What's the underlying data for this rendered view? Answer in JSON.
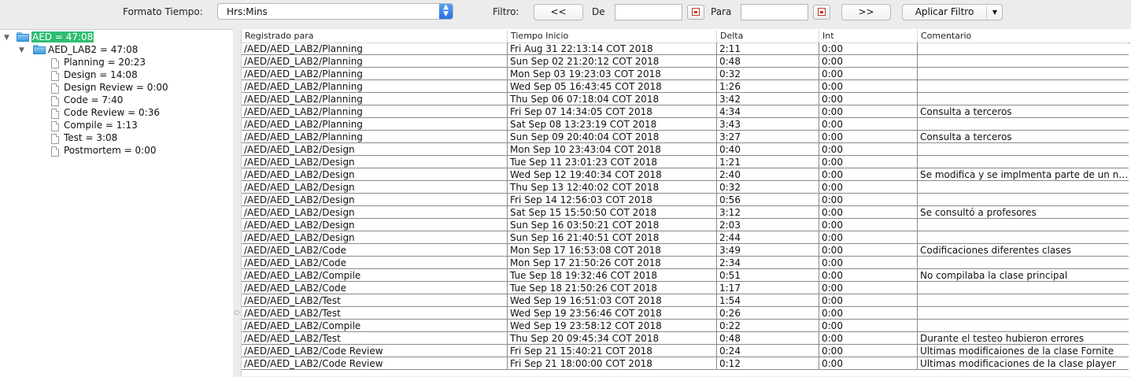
{
  "toolbar": {
    "time_format_label": "Formato Tiempo:",
    "time_format_value": "Hrs:Mins",
    "filter_label": "Filtro:",
    "prev_label": "<<",
    "from_label": "De",
    "from_value": "",
    "to_label": "Para",
    "to_value": "",
    "next_label": ">>",
    "apply_label": "Aplicar Filtro"
  },
  "tree": {
    "root": "AED = 47:08",
    "project": "AED_LAB2 = 47:08",
    "phases": [
      "Planning = 20:23",
      "Design = 14:08",
      "Design Review = 0:00",
      "Code = 7:40",
      "Code Review = 0:36",
      "Compile = 1:13",
      "Test = 3:08",
      "Postmortem = 0:00"
    ]
  },
  "table": {
    "headers": [
      "Registrado para",
      "Tiempo Inicio",
      "Delta",
      "Int",
      "Comentario"
    ],
    "rows": [
      [
        "/AED/AED_LAB2/Planning",
        "Fri Aug 31 22:13:14 COT 2018",
        "2:11",
        "0:00",
        ""
      ],
      [
        "/AED/AED_LAB2/Planning",
        "Sun Sep 02 21:20:12 COT 2018",
        "0:48",
        "0:00",
        ""
      ],
      [
        "/AED/AED_LAB2/Planning",
        "Mon Sep 03 19:23:03 COT 2018",
        "0:32",
        "0:00",
        ""
      ],
      [
        "/AED/AED_LAB2/Planning",
        "Wed Sep 05 16:43:45 COT 2018",
        "1:26",
        "0:00",
        ""
      ],
      [
        "/AED/AED_LAB2/Planning",
        "Thu Sep 06 07:18:04 COT 2018",
        "3:42",
        "0:00",
        ""
      ],
      [
        "/AED/AED_LAB2/Planning",
        "Fri Sep 07 14:34:05 COT 2018",
        "4:34",
        "0:00",
        "Consulta a terceros"
      ],
      [
        "/AED/AED_LAB2/Planning",
        "Sat Sep 08 13:23:19 COT 2018",
        "3:43",
        "0:00",
        ""
      ],
      [
        "/AED/AED_LAB2/Planning",
        "Sun Sep 09 20:40:04 COT 2018",
        "3:27",
        "0:00",
        "Consulta a terceros"
      ],
      [
        "/AED/AED_LAB2/Design",
        "Mon Sep 10 23:43:04 COT 2018",
        "0:40",
        "0:00",
        ""
      ],
      [
        "/AED/AED_LAB2/Design",
        "Tue Sep 11 23:01:23 COT 2018",
        "1:21",
        "0:00",
        ""
      ],
      [
        "/AED/AED_LAB2/Design",
        "Wed Sep 12 19:40:34 COT 2018",
        "2:40",
        "0:00",
        "Se modifica y se implmenta parte de un nu..."
      ],
      [
        "/AED/AED_LAB2/Design",
        "Thu Sep 13 12:40:02 COT 2018",
        "0:32",
        "0:00",
        ""
      ],
      [
        "/AED/AED_LAB2/Design",
        "Fri Sep 14 12:56:03 COT 2018",
        "0:56",
        "0:00",
        ""
      ],
      [
        "/AED/AED_LAB2/Design",
        "Sat Sep 15 15:50:50 COT 2018",
        "3:12",
        "0:00",
        "Se consultó a profesores"
      ],
      [
        "/AED/AED_LAB2/Design",
        "Sun Sep 16 03:50:21 COT 2018",
        "2:03",
        "0:00",
        ""
      ],
      [
        "/AED/AED_LAB2/Design",
        "Sun Sep 16 21:40:51 COT 2018",
        "2:44",
        "0:00",
        ""
      ],
      [
        "/AED/AED_LAB2/Code",
        "Mon Sep 17 16:53:08 COT 2018",
        "3:49",
        "0:00",
        "Codificaciones diferentes clases"
      ],
      [
        "/AED/AED_LAB2/Code",
        "Mon Sep 17 21:50:26 COT 2018",
        "2:34",
        "0:00",
        ""
      ],
      [
        "/AED/AED_LAB2/Compile",
        "Tue Sep 18 19:32:46 COT 2018",
        "0:51",
        "0:00",
        "No compilaba la clase principal"
      ],
      [
        "/AED/AED_LAB2/Code",
        "Tue Sep 18 21:50:26 COT 2018",
        "1:17",
        "0:00",
        ""
      ],
      [
        "/AED/AED_LAB2/Test",
        "Wed Sep 19 16:51:03 COT 2018",
        "1:54",
        "0:00",
        ""
      ],
      [
        "/AED/AED_LAB2/Test",
        "Wed Sep 19 23:56:46 COT 2018",
        "0:26",
        "0:00",
        ""
      ],
      [
        "/AED/AED_LAB2/Compile",
        "Wed Sep 19 23:58:12 COT 2018",
        "0:22",
        "0:00",
        ""
      ],
      [
        "/AED/AED_LAB2/Test",
        "Thu Sep 20 09:45:34 COT 2018",
        "0:48",
        "0:00",
        "Durante el testeo hubieron errores"
      ],
      [
        "/AED/AED_LAB2/Code Review",
        "Fri Sep 21 15:40:21 COT 2018",
        "0:24",
        "0:00",
        "Ultimas modificaiones de la clase Fornite"
      ],
      [
        "/AED/AED_LAB2/Code Review",
        "Fri Sep 21 18:00:00 COT 2018",
        "0:12",
        "0:00",
        "Ultimas modificaciones de la clase player"
      ]
    ]
  }
}
